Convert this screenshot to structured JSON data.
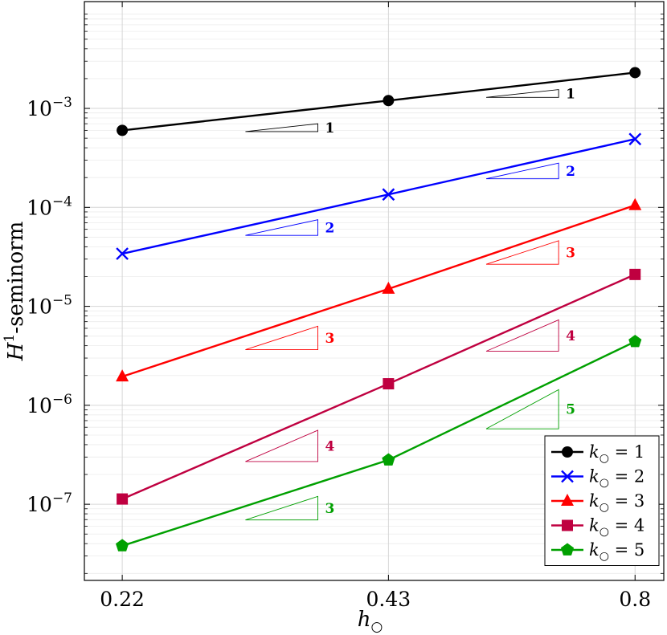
{
  "chart_data": {
    "type": "line",
    "xlabel": "h",
    "xlabel_sub": "○",
    "ylabel": "H",
    "ylabel_sup": "1",
    "ylabel_rest": "-seminorm",
    "x_scale": "log",
    "y_scale": "log",
    "xlim": [
      0.2,
      0.86
    ],
    "ylim": [
      1.7e-08,
      0.012
    ],
    "grid": true,
    "x_ticks": [
      0.22,
      0.43,
      0.8
    ],
    "x_tick_labels": [
      "0.22",
      "0.43",
      "0.8"
    ],
    "y_ticks": [
      0.001,
      0.0001,
      1e-05,
      1e-06,
      1e-07
    ],
    "y_tick_labels": [
      {
        "base": "10",
        "exp": "−3"
      },
      {
        "base": "10",
        "exp": "−4"
      },
      {
        "base": "10",
        "exp": "−5"
      },
      {
        "base": "10",
        "exp": "−6"
      },
      {
        "base": "10",
        "exp": "−7"
      }
    ],
    "legend_position": "bottom-right",
    "x": [
      0.22,
      0.43,
      0.8
    ],
    "series": [
      {
        "name": "k○ = 1",
        "legend_k": "k",
        "legend_sub": "○",
        "legend_rest": " = 1",
        "color": "#000000",
        "marker": "circle",
        "values": [
          0.0006,
          0.0012,
          0.0023
        ]
      },
      {
        "name": "k○ = 2",
        "legend_k": "k",
        "legend_sub": "○",
        "legend_rest": " = 2",
        "color": "#0000ff",
        "marker": "x",
        "values": [
          3.4e-05,
          0.000135,
          0.00049
        ]
      },
      {
        "name": "k○ = 3",
        "legend_k": "k",
        "legend_sub": "○",
        "legend_rest": " = 3",
        "color": "#ff0000",
        "marker": "triangle",
        "values": [
          1.95e-06,
          1.5e-05,
          0.000105
        ]
      },
      {
        "name": "k○ = 4",
        "legend_k": "k",
        "legend_sub": "○",
        "legend_rest": " = 4",
        "color": "#bf0040",
        "marker": "square",
        "values": [
          1.13e-07,
          1.65e-06,
          2.1e-05
        ]
      },
      {
        "name": "k○ = 5",
        "legend_k": "k",
        "legend_sub": "○",
        "legend_rest": " = 5",
        "color": "#00a000",
        "marker": "pentagon",
        "values": [
          3.8e-08,
          2.8e-07,
          4.4e-06
        ]
      }
    ],
    "slope_triangles": [
      {
        "label": "1",
        "color": "#000000",
        "x0": 0.3,
        "x1": 0.36,
        "y_top": 0.0007,
        "slope": 1
      },
      {
        "label": "1",
        "color": "#000000",
        "x0": 0.55,
        "x1": 0.66,
        "y_top": 0.00155,
        "slope": 1
      },
      {
        "label": "2",
        "color": "#0000ff",
        "x0": 0.3,
        "x1": 0.36,
        "y_top": 7.5e-05,
        "slope": 2
      },
      {
        "label": "2",
        "color": "#0000ff",
        "x0": 0.55,
        "x1": 0.66,
        "y_top": 0.00028,
        "slope": 2
      },
      {
        "label": "3",
        "color": "#ff0000",
        "x0": 0.3,
        "x1": 0.36,
        "y_top": 6.3e-06,
        "slope": 3
      },
      {
        "label": "3",
        "color": "#ff0000",
        "x0": 0.55,
        "x1": 0.66,
        "y_top": 4.6e-05,
        "slope": 3
      },
      {
        "label": "4",
        "color": "#bf0040",
        "x0": 0.3,
        "x1": 0.36,
        "y_top": 5.6e-07,
        "slope": 4
      },
      {
        "label": "4",
        "color": "#bf0040",
        "x0": 0.55,
        "x1": 0.66,
        "y_top": 7.3e-06,
        "slope": 4
      },
      {
        "label": "3",
        "color": "#00a000",
        "x0": 0.3,
        "x1": 0.36,
        "y_top": 1.2e-07,
        "slope": 3
      },
      {
        "label": "5",
        "color": "#00a000",
        "x0": 0.55,
        "x1": 0.66,
        "y_top": 1.44e-06,
        "slope": 5
      }
    ]
  }
}
